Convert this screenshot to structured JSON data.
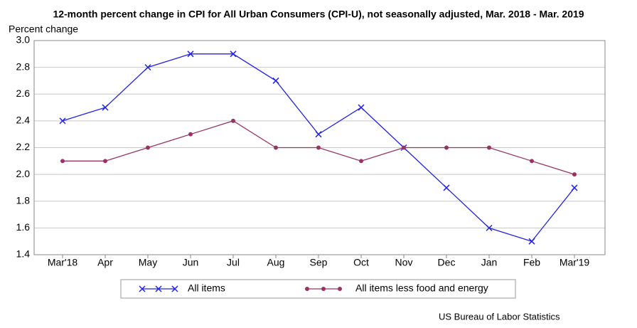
{
  "chart_data": {
    "type": "line",
    "title": "12-month percent change in CPI for All Urban Consumers (CPI-U), not seasonally adjusted, Mar. 2018 - Mar. 2019",
    "y_label": "Percent change",
    "source": "US Bureau of Labor Statistics",
    "categories": [
      "Mar'18",
      "Apr",
      "May",
      "Jun",
      "Jul",
      "Aug",
      "Sep",
      "Oct",
      "Nov",
      "Dec",
      "Jan",
      "Feb",
      "Mar'19"
    ],
    "series": [
      {
        "name": "All items",
        "color": "#2323e6",
        "marker": "x",
        "values": [
          2.4,
          2.5,
          2.8,
          2.9,
          2.9,
          2.7,
          2.3,
          2.5,
          2.2,
          1.9,
          1.6,
          1.5,
          1.9
        ]
      },
      {
        "name": "All items less food and energy",
        "color": "#993366",
        "marker": "dot",
        "values": [
          2.1,
          2.1,
          2.2,
          2.3,
          2.4,
          2.2,
          2.2,
          2.1,
          2.2,
          2.2,
          2.2,
          2.1,
          2.0
        ]
      }
    ],
    "ylim": [
      1.4,
      3.0
    ],
    "yticks": [
      1.4,
      1.6,
      1.8,
      {
        "value": 2.0,
        "label": "2.0"
      },
      2.2,
      2.4,
      2.6,
      2.8,
      {
        "value": 3.0,
        "label": "3.0"
      }
    ],
    "grid": true
  }
}
